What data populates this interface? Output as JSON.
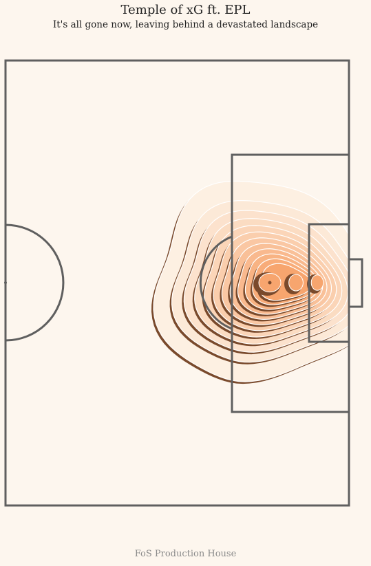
{
  "title": "Temple of xG ft. EPL",
  "subtitle": "It's all gone now, leaving behind a devastated landscape",
  "footer": "FoS Production House",
  "colors": {
    "background": "#fdf6ee",
    "pitch_lines": "#5f5f5f",
    "contour_dark": "#7a4a2c",
    "contour_light": "#ffffff",
    "density_low": "#fdf0e2",
    "density_high": "#f7a56e"
  },
  "chart_data": {
    "type": "heatmap",
    "title": "Temple of xG ft. EPL",
    "subtitle": "It's all gone now, leaving behind a devastated landscape",
    "kind": "shot density contour map (attacking half, goal on the right)",
    "pitch": {
      "half": "attacking",
      "goal_side": "right"
    },
    "density_peaks": [
      {
        "label": "penalty spot",
        "intensity": 1.0
      },
      {
        "label": "six-yard box centre",
        "intensity": 0.92
      },
      {
        "label": "between spot and six-yard box",
        "intensity": 0.85
      }
    ],
    "contour_levels": 12,
    "xlabel": "",
    "ylabel": "",
    "legend": false,
    "grid": false
  }
}
